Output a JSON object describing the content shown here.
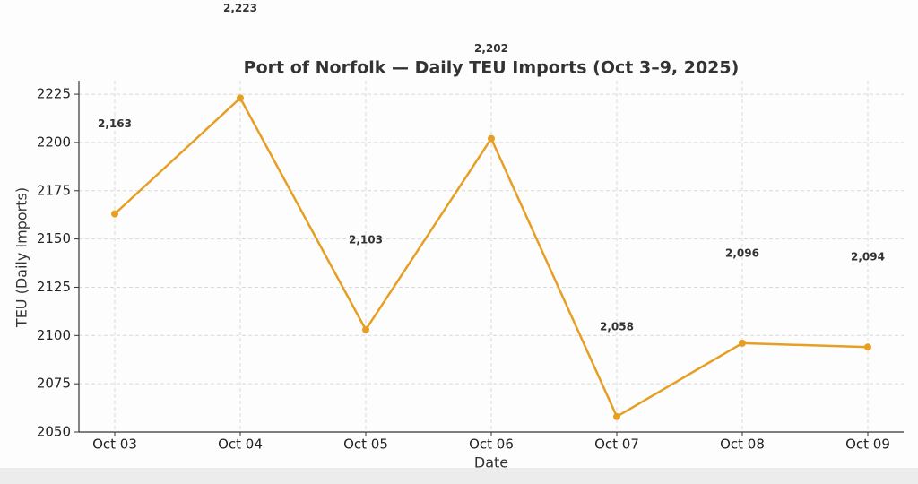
{
  "chart_data": {
    "type": "line",
    "title": "Port of Norfolk — Daily TEU Imports (Oct 3–9, 2025)",
    "x_label": "Date",
    "y_label": "TEU (Daily Imports)",
    "categories": [
      "Oct 03",
      "Oct 04",
      "Oct 05",
      "Oct 06",
      "Oct 07",
      "Oct 08",
      "Oct 09"
    ],
    "series": [
      {
        "name": "TEU Imports",
        "color": "#e69f24",
        "values": [
          2163,
          2223,
          2103,
          2202,
          2058,
          2096,
          2094
        ],
        "value_labels": [
          "2,163",
          "2,223",
          "2,103",
          "2,202",
          "2,058",
          "2,096",
          "2,094"
        ]
      }
    ],
    "ylim": [
      2050,
      2232
    ],
    "yticks": [
      2050,
      2075,
      2100,
      2125,
      2150,
      2175,
      2200,
      2225
    ],
    "grid": true
  }
}
